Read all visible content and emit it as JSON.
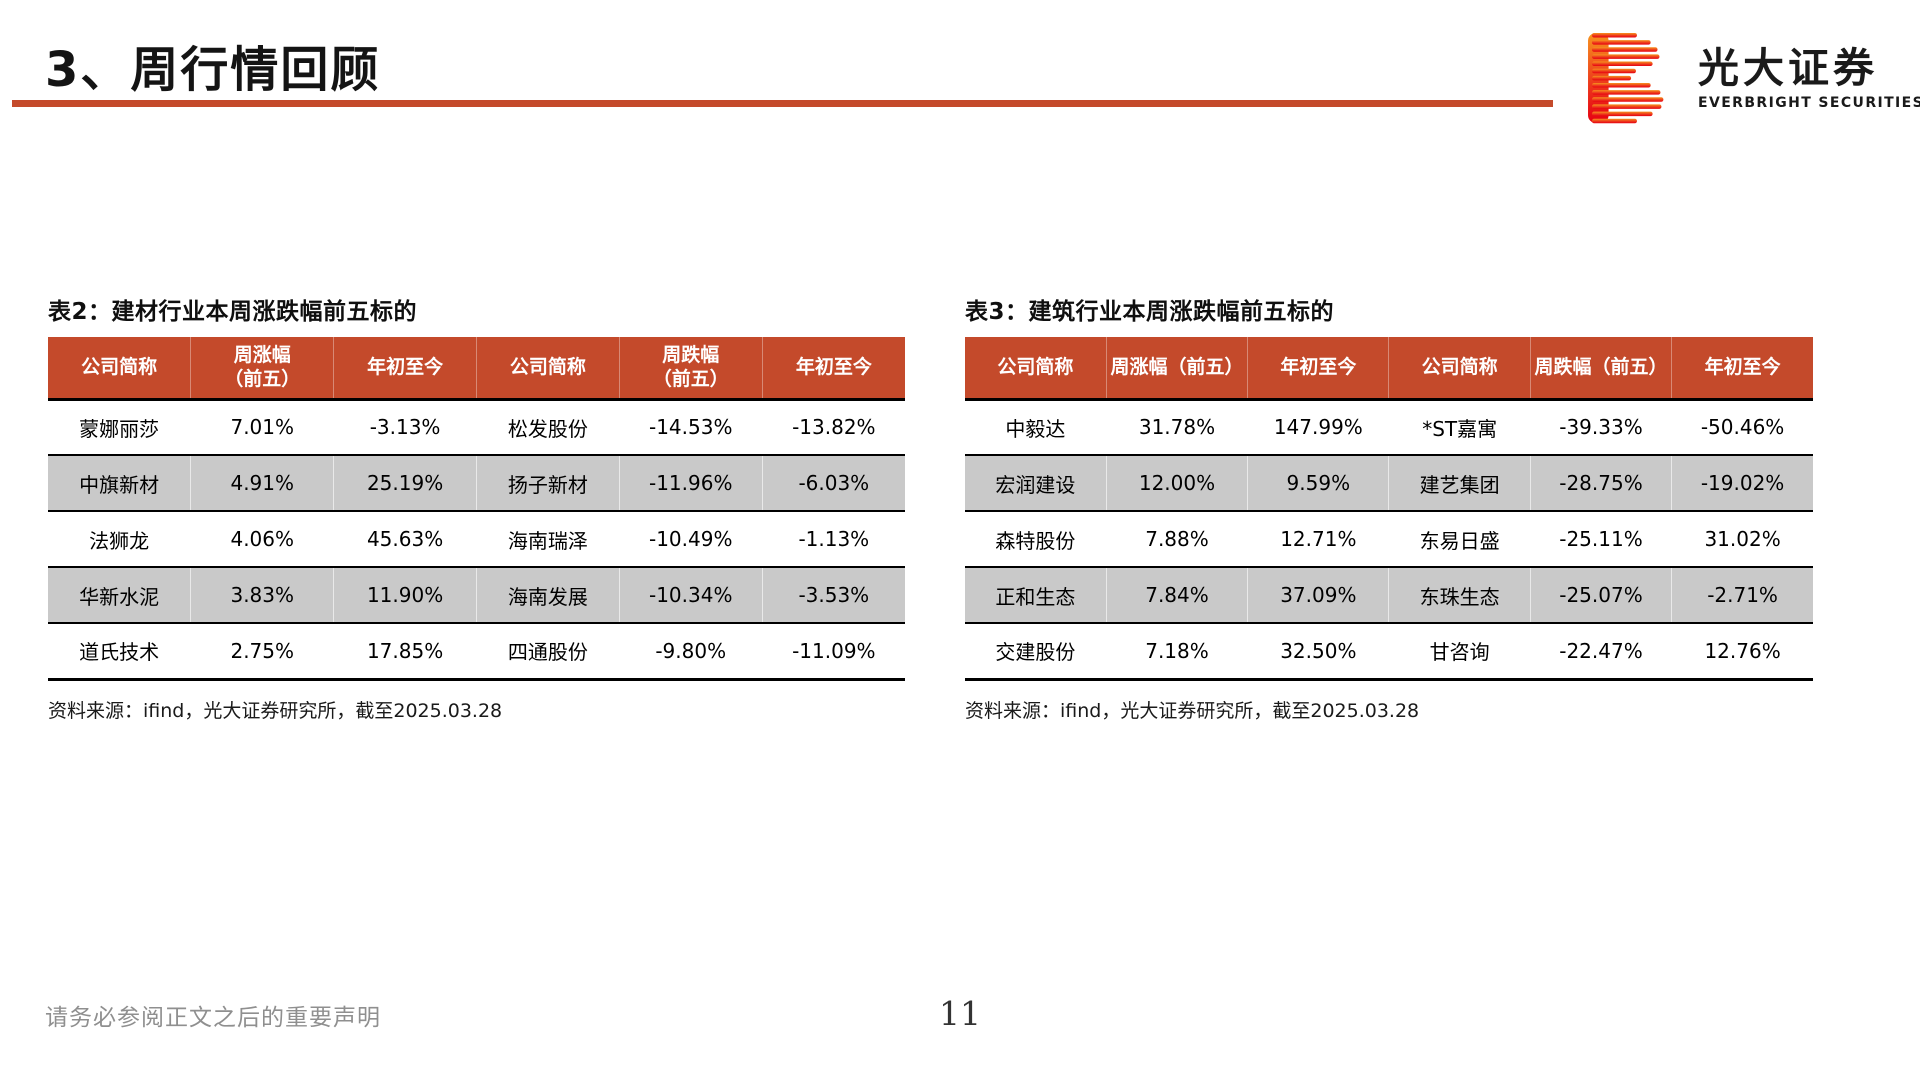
{
  "page": {
    "title": "3、周行情回顾",
    "footer_note": "请务必参阅正文之后的重要声明",
    "page_number": "11"
  },
  "logo": {
    "name_cn": "光大证券",
    "name_en": "EVERBRIGHT SECURITIES"
  },
  "colors": {
    "accent": "#C44A2B",
    "row_alt": "#C9C9C9",
    "logo_gradient_top": "#F7941E",
    "logo_gradient_bottom": "#E60012"
  },
  "tables": [
    {
      "title": "表2：建材行业本周涨跌幅前五标的",
      "headers": [
        "公司简称",
        "周涨幅\n（前五）",
        "年初至今",
        "公司简称",
        "周跌幅\n（前五）",
        "年初至今"
      ],
      "rows": [
        [
          "蒙娜丽莎",
          "7.01%",
          "-3.13%",
          "松发股份",
          "-14.53%",
          "-13.82%"
        ],
        [
          "中旗新材",
          "4.91%",
          "25.19%",
          "扬子新材",
          "-11.96%",
          "-6.03%"
        ],
        [
          "法狮龙",
          "4.06%",
          "45.63%",
          "海南瑞泽",
          "-10.49%",
          "-1.13%"
        ],
        [
          "华新水泥",
          "3.83%",
          "11.90%",
          "海南发展",
          "-10.34%",
          "-3.53%"
        ],
        [
          "道氏技术",
          "2.75%",
          "17.85%",
          "四通股份",
          "-9.80%",
          "-11.09%"
        ]
      ],
      "source": "资料来源：ifind，光大证券研究所，截至2025.03.28"
    },
    {
      "title": "表3：建筑行业本周涨跌幅前五标的",
      "headers": [
        "公司简称",
        "周涨幅（前五）",
        "年初至今",
        "公司简称",
        "周跌幅（前五）",
        "年初至今"
      ],
      "rows": [
        [
          "中毅达",
          "31.78%",
          "147.99%",
          "*ST嘉寓",
          "-39.33%",
          "-50.46%"
        ],
        [
          "宏润建设",
          "12.00%",
          "9.59%",
          "建艺集团",
          "-28.75%",
          "-19.02%"
        ],
        [
          "森特股份",
          "7.88%",
          "12.71%",
          "东易日盛",
          "-25.11%",
          "31.02%"
        ],
        [
          "正和生态",
          "7.84%",
          "37.09%",
          "东珠生态",
          "-25.07%",
          "-2.71%"
        ],
        [
          "交建股份",
          "7.18%",
          "32.50%",
          "甘咨询",
          "-22.47%",
          "12.76%"
        ]
      ],
      "source": "资料来源：ifind，光大证券研究所，截至2025.03.28"
    }
  ]
}
